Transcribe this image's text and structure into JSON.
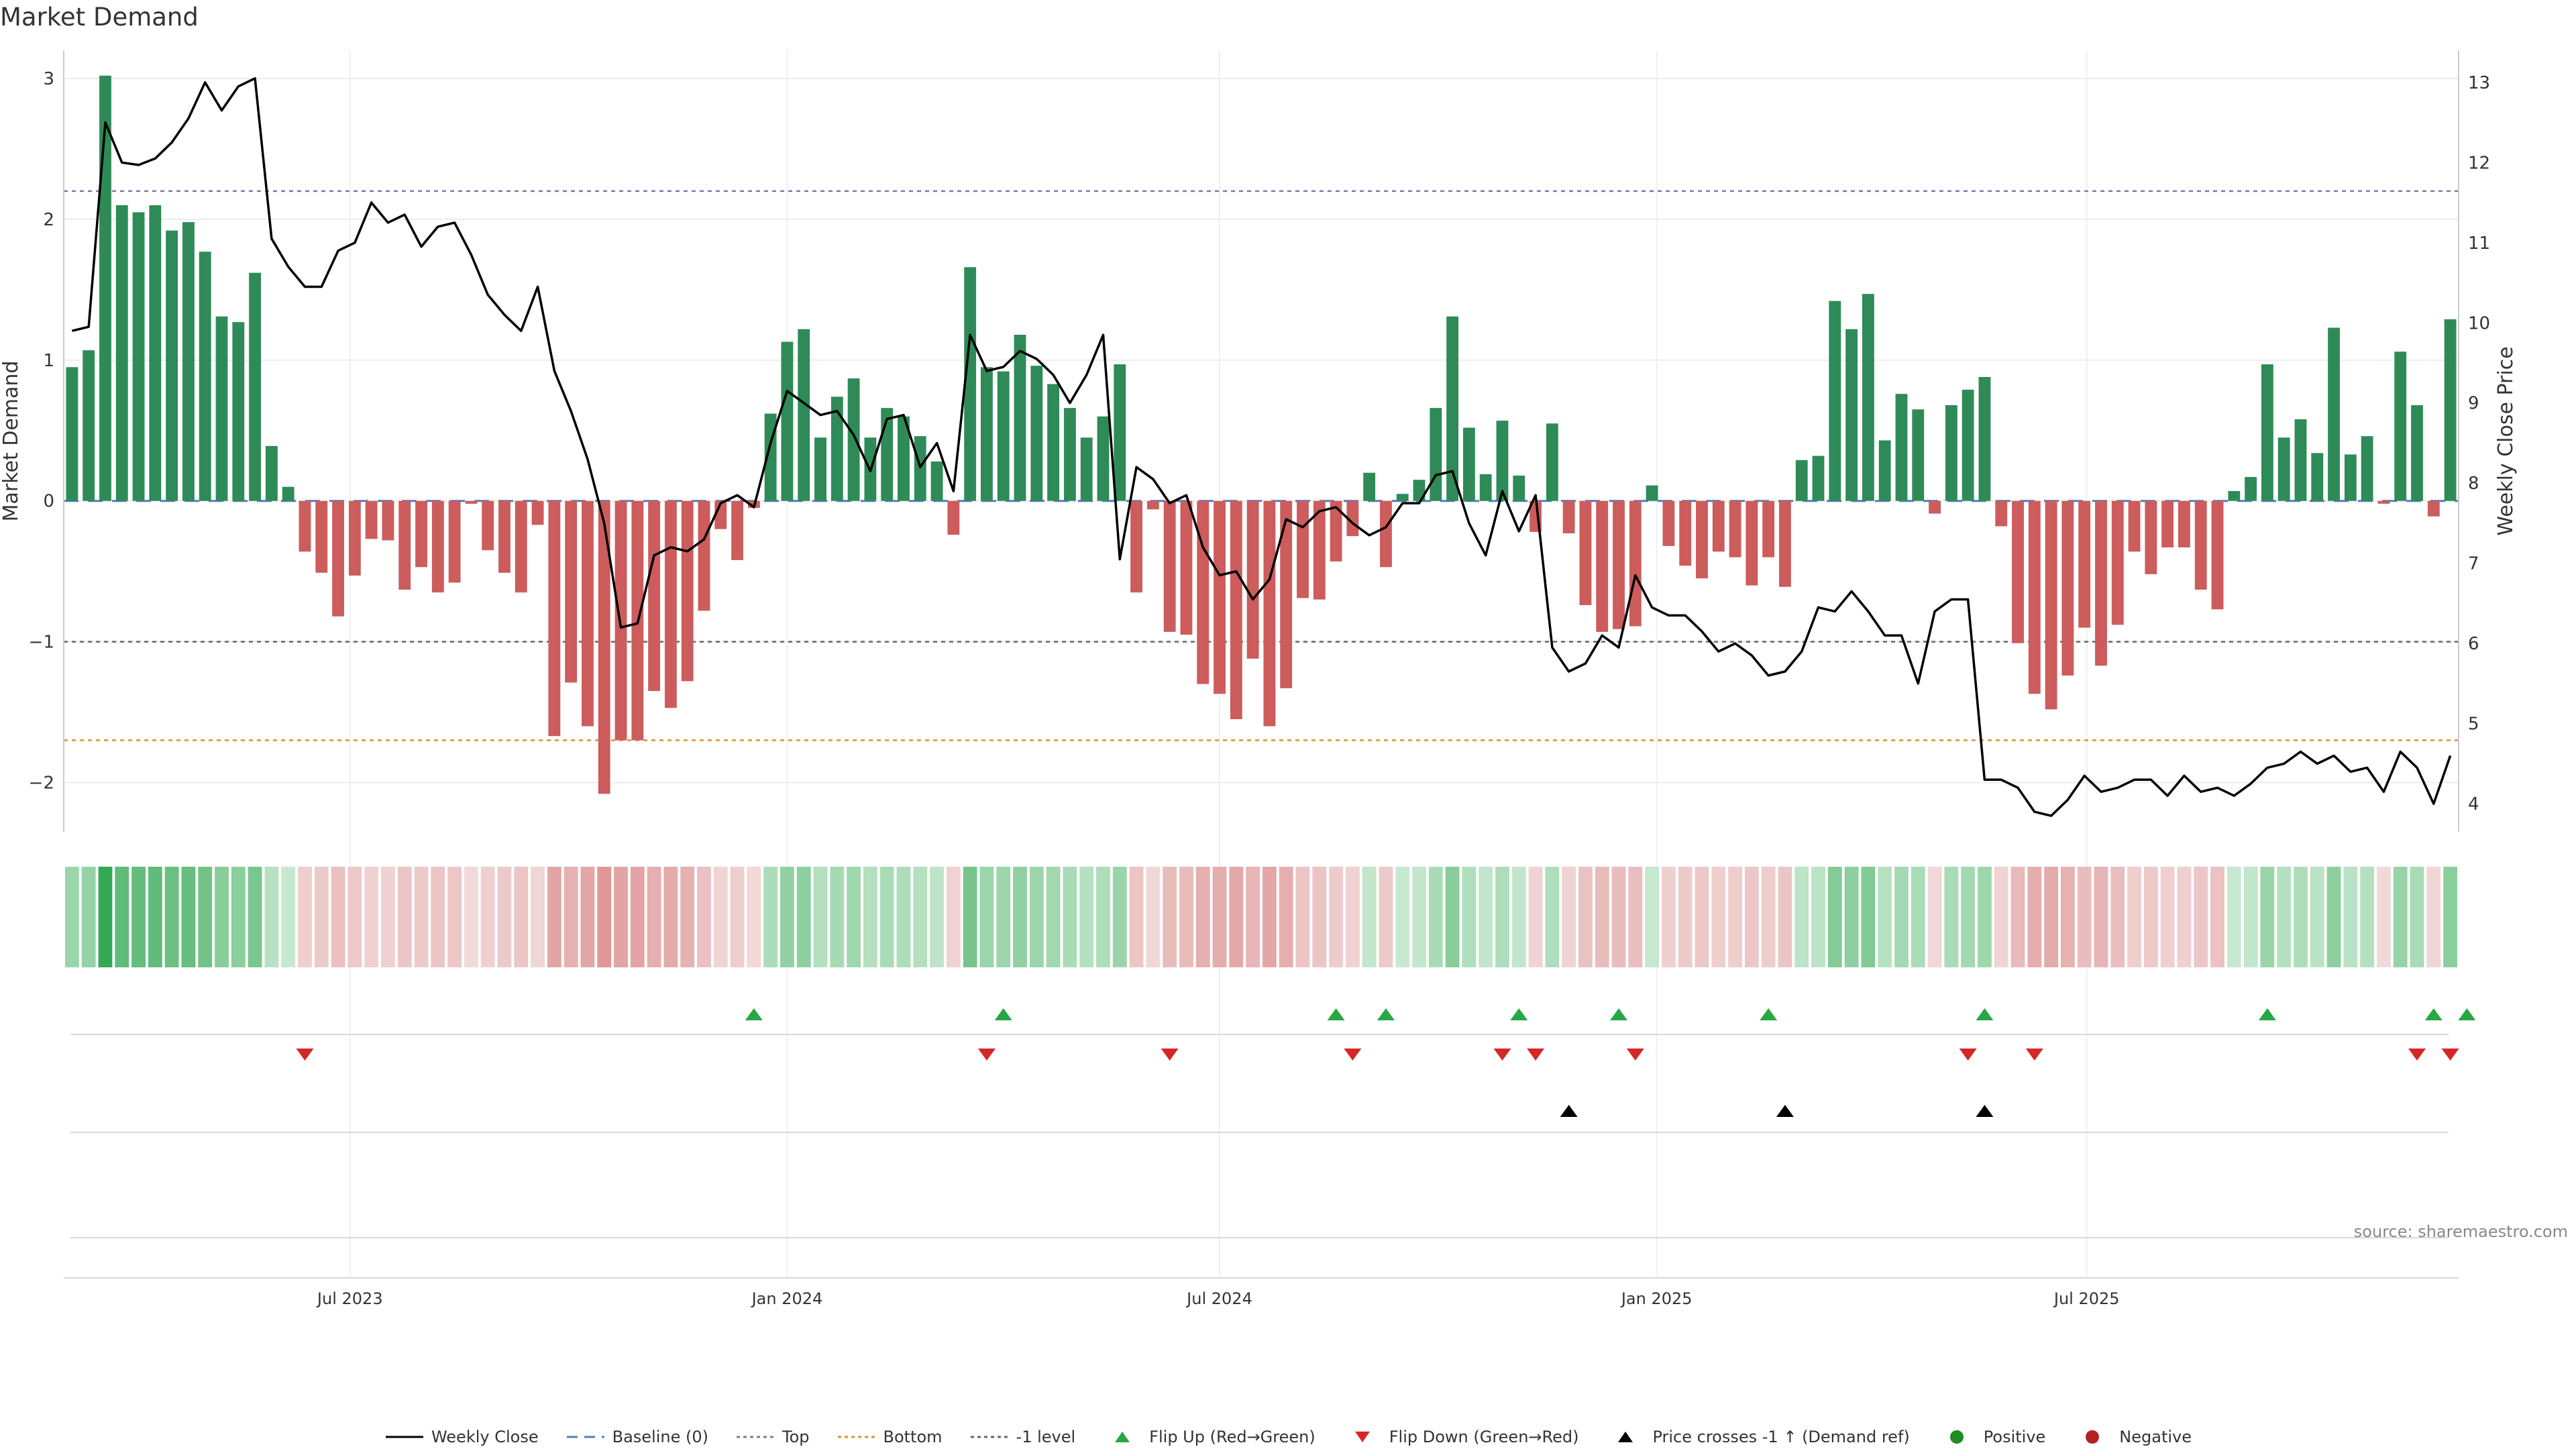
{
  "title": "Market Demand",
  "source": "source: sharemaestro.com",
  "colors": {
    "positive": "#2e8b57",
    "negative": "#cd5c5c",
    "price": "#000000",
    "baseline": "#4f7fbf",
    "top": "#7a7aa8",
    "bottom": "#e0902a",
    "minus1": "#666666",
    "flip_up": "#28a745",
    "flip_down": "#d62728",
    "cross": "#000000",
    "dot_positive": "#228b22",
    "dot_negative": "#b22222"
  },
  "chart_data": {
    "type": "bar",
    "title": "Market Demand",
    "ylabel": "Market Demand",
    "y2label": "Weekly Close Price",
    "ylim": [
      -2.35,
      3.2
    ],
    "y2lim": [
      3.65,
      13.4
    ],
    "yticks": [
      -2,
      -1,
      0,
      1,
      2,
      3
    ],
    "ytick_labels": [
      "−2",
      "−1",
      "0",
      "1",
      "2",
      "3"
    ],
    "y2ticks": [
      4,
      5,
      6,
      7,
      8,
      9,
      10,
      11,
      12,
      13
    ],
    "x_dates": [
      "2023-03-06",
      "2023-03-13",
      "2023-03-20",
      "2023-03-27",
      "2023-04-03",
      "2023-04-10",
      "2023-04-17",
      "2023-04-24",
      "2023-05-01",
      "2023-05-08",
      "2023-05-15",
      "2023-05-22",
      "2023-05-29",
      "2023-06-05",
      "2023-06-12",
      "2023-06-19",
      "2023-06-26",
      "2023-07-03",
      "2023-07-10",
      "2023-07-17",
      "2023-07-24",
      "2023-07-31",
      "2023-08-07",
      "2023-08-14",
      "2023-08-21",
      "2023-08-28",
      "2023-09-04",
      "2023-09-11",
      "2023-09-18",
      "2023-09-25",
      "2023-10-02",
      "2023-10-09",
      "2023-10-16",
      "2023-10-23",
      "2023-10-30",
      "2023-11-06",
      "2023-11-13",
      "2023-11-20",
      "2023-11-27",
      "2023-12-04",
      "2023-12-11",
      "2023-12-18",
      "2023-12-25",
      "2024-01-01",
      "2024-01-08",
      "2024-01-15",
      "2024-01-22",
      "2024-01-29",
      "2024-02-05",
      "2024-02-12",
      "2024-02-19",
      "2024-02-26",
      "2024-03-04",
      "2024-03-11",
      "2024-03-18",
      "2024-03-25",
      "2024-04-01",
      "2024-04-08",
      "2024-04-15",
      "2024-04-22",
      "2024-04-29",
      "2024-05-06",
      "2024-05-13",
      "2024-05-20",
      "2024-05-27",
      "2024-06-03",
      "2024-06-10",
      "2024-06-17",
      "2024-06-24",
      "2024-07-01",
      "2024-07-08",
      "2024-07-15",
      "2024-07-22",
      "2024-07-29",
      "2024-08-05",
      "2024-08-12",
      "2024-08-19",
      "2024-08-26",
      "2024-09-02",
      "2024-09-09",
      "2024-09-16",
      "2024-09-23",
      "2024-09-30",
      "2024-10-07",
      "2024-10-14",
      "2024-10-21",
      "2024-10-28",
      "2024-11-04",
      "2024-11-11",
      "2024-11-18",
      "2024-11-25",
      "2024-12-02",
      "2024-12-09",
      "2024-12-16",
      "2024-12-23",
      "2024-12-30",
      "2025-01-06",
      "2025-01-13",
      "2025-01-20",
      "2025-01-27",
      "2025-02-03",
      "2025-02-10",
      "2025-02-17",
      "2025-02-24",
      "2025-03-03",
      "2025-03-10",
      "2025-03-17",
      "2025-03-24",
      "2025-03-31",
      "2025-04-07",
      "2025-04-14",
      "2025-04-21",
      "2025-04-28",
      "2025-05-05",
      "2025-05-12",
      "2025-05-19",
      "2025-05-26",
      "2025-06-02",
      "2025-06-09",
      "2025-06-16",
      "2025-06-23",
      "2025-06-30",
      "2025-07-07",
      "2025-07-14",
      "2025-07-21",
      "2025-07-28",
      "2025-08-04",
      "2025-08-11",
      "2025-08-18",
      "2025-08-25",
      "2025-09-01",
      "2025-09-08",
      "2025-09-15",
      "2025-09-22",
      "2025-09-29",
      "2025-10-06",
      "2025-10-13",
      "2025-10-20",
      "2025-10-27",
      "2025-11-03",
      "2025-11-10",
      "2025-11-17",
      "2025-11-24",
      "2025-12-01"
    ],
    "xticks": [
      "2023-07-01",
      "2024-01-01",
      "2024-07-01",
      "2025-01-01",
      "2025-07-01"
    ],
    "xtick_labels": [
      "Jul 2023",
      "Jan 2024",
      "Jul 2024",
      "Jan 2025",
      "Jul 2025"
    ],
    "series": [
      {
        "name": "Market Demand",
        "type": "bar",
        "values": [
          0.95,
          1.07,
          3.02,
          2.1,
          2.05,
          2.1,
          1.92,
          1.98,
          1.77,
          1.31,
          1.27,
          1.62,
          0.39,
          0.1,
          -0.36,
          -0.51,
          -0.82,
          -0.53,
          -0.27,
          -0.28,
          -0.63,
          -0.47,
          -0.65,
          -0.58,
          -0.02,
          -0.35,
          -0.51,
          -0.65,
          -0.17,
          -1.67,
          -1.29,
          -1.6,
          -2.08,
          -1.7,
          -1.7,
          -1.35,
          -1.47,
          -1.28,
          -0.78,
          -0.2,
          -0.42,
          -0.05,
          0.62,
          1.13,
          1.22,
          0.45,
          0.74,
          0.87,
          0.45,
          0.66,
          0.6,
          0.46,
          0.28,
          -0.24,
          1.66,
          0.95,
          0.92,
          1.18,
          0.96,
          0.83,
          0.66,
          0.45,
          0.6,
          0.97,
          -0.65,
          -0.06,
          -0.93,
          -0.95,
          -1.3,
          -1.37,
          -1.55,
          -1.12,
          -1.6,
          -1.33,
          -0.69,
          -0.7,
          -0.43,
          -0.25,
          0.2,
          -0.47,
          0.05,
          0.15,
          0.66,
          1.31,
          0.52,
          0.19,
          0.57,
          0.18,
          -0.22,
          0.55,
          -0.23,
          -0.74,
          -0.93,
          -0.91,
          -0.89,
          0.11,
          -0.32,
          -0.46,
          -0.55,
          -0.36,
          -0.4,
          -0.6,
          -0.4,
          -0.61,
          0.29,
          0.32,
          1.42,
          1.22,
          1.47,
          0.43,
          0.76,
          0.65,
          -0.09,
          0.68,
          0.79,
          0.88,
          -0.18,
          -1.01,
          -1.37,
          -1.48,
          -1.24,
          -0.9,
          -1.17,
          -0.88,
          -0.36,
          -0.52,
          -0.33,
          -0.33,
          -0.63,
          -0.77,
          0.07,
          0.17,
          0.97,
          0.45,
          0.58,
          0.34,
          1.23,
          0.33,
          0.46,
          -0.02,
          1.06,
          0.68,
          -0.11,
          1.29
        ]
      },
      {
        "name": "Weekly Close",
        "type": "line",
        "axis": "y2",
        "values": [
          9.9,
          9.95,
          12.5,
          12.0,
          11.97,
          12.05,
          12.25,
          12.55,
          13.0,
          12.65,
          12.95,
          13.05,
          11.05,
          10.7,
          10.45,
          10.45,
          10.9,
          11.0,
          11.5,
          11.25,
          11.35,
          10.95,
          11.2,
          11.25,
          10.85,
          10.35,
          10.1,
          9.9,
          10.45,
          9.4,
          8.9,
          8.3,
          7.5,
          6.2,
          6.25,
          7.1,
          7.2,
          7.15,
          7.3,
          7.75,
          7.85,
          7.7,
          8.5,
          9.15,
          9.0,
          8.85,
          8.9,
          8.6,
          8.15,
          8.8,
          8.85,
          8.2,
          8.5,
          7.9,
          9.85,
          9.4,
          9.45,
          9.65,
          9.55,
          9.35,
          9.0,
          9.35,
          9.85,
          7.05,
          8.2,
          8.05,
          7.75,
          7.85,
          7.2,
          6.85,
          6.9,
          6.55,
          6.8,
          7.55,
          7.45,
          7.65,
          7.7,
          7.5,
          7.35,
          7.45,
          7.75,
          7.75,
          8.1,
          8.15,
          7.5,
          7.1,
          7.9,
          7.4,
          7.85,
          5.95,
          5.65,
          5.75,
          6.1,
          5.95,
          6.85,
          6.45,
          6.35,
          6.35,
          6.15,
          5.9,
          6.0,
          5.85,
          5.6,
          5.65,
          5.9,
          6.45,
          6.4,
          6.65,
          6.4,
          6.1,
          6.1,
          5.5,
          6.4,
          6.55,
          6.55,
          4.3,
          4.3,
          4.2,
          3.9,
          3.85,
          4.05,
          4.35,
          4.15,
          4.2,
          4.3,
          4.3,
          4.1,
          4.35,
          4.15,
          4.2,
          4.1,
          4.25,
          4.45,
          4.5,
          4.65,
          4.5,
          4.6,
          4.4,
          4.45,
          4.15,
          4.65,
          4.45,
          4.0,
          4.6
        ]
      }
    ],
    "reference_lines": [
      {
        "name": "Baseline (0)",
        "y": 0
      },
      {
        "name": "Top",
        "y": 2.2
      },
      {
        "name": "Bottom",
        "y": -1.7
      },
      {
        "name": "-1 level",
        "y": -1
      }
    ],
    "flip_up_dates": [
      "2023-12-18",
      "2024-04-01",
      "2024-08-19",
      "2024-09-09",
      "2024-11-04",
      "2024-12-16",
      "2025-02-17",
      "2025-05-19",
      "2025-09-15",
      "2025-11-24",
      "2025-12-08"
    ],
    "flip_down_dates": [
      "2023-06-12",
      "2024-03-25",
      "2024-06-10",
      "2024-08-26",
      "2024-10-28",
      "2024-11-11",
      "2024-12-23",
      "2025-05-12",
      "2025-06-09",
      "2025-11-17",
      "2025-12-01"
    ],
    "cross_dates": [
      "2024-11-25",
      "2025-02-24",
      "2025-05-19"
    ],
    "legend": [
      "Weekly Close",
      "Baseline (0)",
      "Top",
      "Bottom",
      "-1 level",
      "Flip Up (Red→Green)",
      "Flip Down (Green→Red)",
      "Price crosses -1 ↑ (Demand ref)",
      "Positive",
      "Negative"
    ],
    "legend_position": "bottom-center",
    "grid": true
  }
}
